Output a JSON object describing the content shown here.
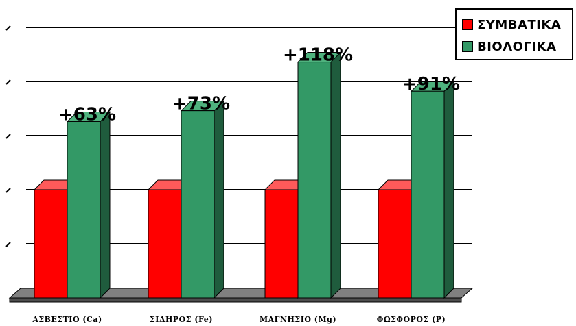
{
  "chart_data": {
    "type": "bar",
    "categories": [
      "ΑΣΒΕΣΤΙΟ (Ca)",
      "ΣΙΔΗΡΟΣ (Fe)",
      "ΜΑΓΝΗΣΙΟ (Mg)",
      "ΦΩΣΦΟΡΟΣ (P)"
    ],
    "series": [
      {
        "name": "ΣΥΜΒΑΤΙΚΑ",
        "color": "#ff0000",
        "values": [
          100,
          100,
          100,
          100
        ]
      },
      {
        "name": "ΒΙΟΛΟΓΙΚΑ",
        "color": "#339966",
        "values": [
          163,
          173,
          218,
          191
        ]
      }
    ],
    "annotations": [
      "+63%",
      "+73%",
      "+118%",
      "+91%"
    ],
    "title": "",
    "xlabel": "",
    "ylabel": "",
    "ylim": [
      0,
      250
    ],
    "grid": true,
    "legend_position": "top-right"
  }
}
